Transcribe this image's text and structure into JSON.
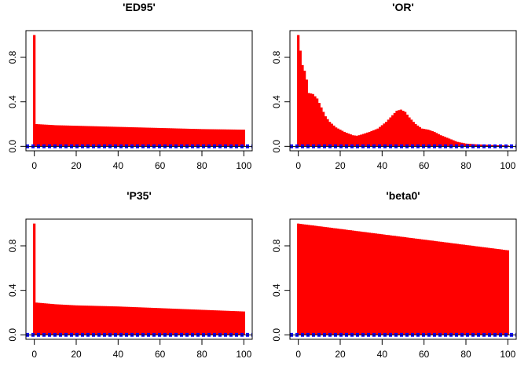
{
  "chart_data": [
    {
      "type": "bar",
      "title": "'ED95'",
      "xlabel": "",
      "ylabel": "",
      "xlim": [
        0,
        100
      ],
      "ylim": [
        0,
        1
      ],
      "xticks": [
        "0",
        "20",
        "40",
        "60",
        "80",
        "100"
      ],
      "yticks": [
        "0.0",
        "0.4",
        "0.8"
      ],
      "bar_color": "#ff0000",
      "ci_color": "#0000ff",
      "ci_bound": 0.01,
      "grid": false,
      "acf_profile": [
        [
          0,
          1.0
        ],
        [
          1,
          0.2
        ],
        [
          10,
          0.19
        ],
        [
          20,
          0.185
        ],
        [
          40,
          0.175
        ],
        [
          60,
          0.165
        ],
        [
          80,
          0.155
        ],
        [
          100,
          0.15
        ]
      ]
    },
    {
      "type": "bar",
      "title": "'OR'",
      "xlabel": "",
      "ylabel": "",
      "xlim": [
        0,
        100
      ],
      "ylim": [
        0,
        1
      ],
      "xticks": [
        "0",
        "20",
        "40",
        "60",
        "80",
        "100"
      ],
      "yticks": [
        "0.0",
        "0.4",
        "0.8"
      ],
      "bar_color": "#ff0000",
      "ci_color": "#0000ff",
      "ci_bound": 0.01,
      "grid": false,
      "acf_profile": [
        [
          0,
          1.0
        ],
        [
          1,
          0.86
        ],
        [
          2,
          0.73
        ],
        [
          3,
          0.68
        ],
        [
          4,
          0.6
        ],
        [
          5,
          0.48
        ],
        [
          7,
          0.47
        ],
        [
          9,
          0.43
        ],
        [
          11,
          0.35
        ],
        [
          13,
          0.27
        ],
        [
          15,
          0.22
        ],
        [
          18,
          0.17
        ],
        [
          22,
          0.13
        ],
        [
          26,
          0.1
        ],
        [
          28,
          0.095
        ],
        [
          30,
          0.105
        ],
        [
          34,
          0.13
        ],
        [
          38,
          0.16
        ],
        [
          42,
          0.22
        ],
        [
          45,
          0.28
        ],
        [
          47,
          0.32
        ],
        [
          49,
          0.33
        ],
        [
          51,
          0.31
        ],
        [
          53,
          0.26
        ],
        [
          56,
          0.2
        ],
        [
          59,
          0.16
        ],
        [
          62,
          0.15
        ],
        [
          65,
          0.13
        ],
        [
          68,
          0.1
        ],
        [
          72,
          0.07
        ],
        [
          76,
          0.04
        ],
        [
          80,
          0.025
        ],
        [
          85,
          0.018
        ],
        [
          90,
          0.014
        ],
        [
          95,
          0.01
        ],
        [
          100,
          0.008
        ]
      ]
    },
    {
      "type": "bar",
      "title": "'P35'",
      "xlabel": "",
      "ylabel": "",
      "xlim": [
        0,
        100
      ],
      "ylim": [
        0,
        1
      ],
      "xticks": [
        "0",
        "20",
        "40",
        "60",
        "80",
        "100"
      ],
      "yticks": [
        "0.0",
        "0.4",
        "0.8"
      ],
      "bar_color": "#ff0000",
      "ci_color": "#0000ff",
      "ci_bound": 0.01,
      "grid": false,
      "acf_profile": [
        [
          0,
          1.0
        ],
        [
          1,
          0.29
        ],
        [
          10,
          0.275
        ],
        [
          20,
          0.265
        ],
        [
          40,
          0.255
        ],
        [
          60,
          0.24
        ],
        [
          80,
          0.225
        ],
        [
          100,
          0.21
        ]
      ]
    },
    {
      "type": "bar",
      "title": "'beta0'",
      "xlabel": "",
      "ylabel": "",
      "xlim": [
        0,
        100
      ],
      "ylim": [
        0,
        1
      ],
      "xticks": [
        "0",
        "20",
        "40",
        "60",
        "80",
        "100"
      ],
      "yticks": [
        "0.0",
        "0.4",
        "0.8"
      ],
      "bar_color": "#ff0000",
      "ci_color": "#0000ff",
      "ci_bound": 0.01,
      "grid": false,
      "acf_profile": [
        [
          0,
          1.0
        ],
        [
          100,
          0.76
        ]
      ]
    }
  ]
}
